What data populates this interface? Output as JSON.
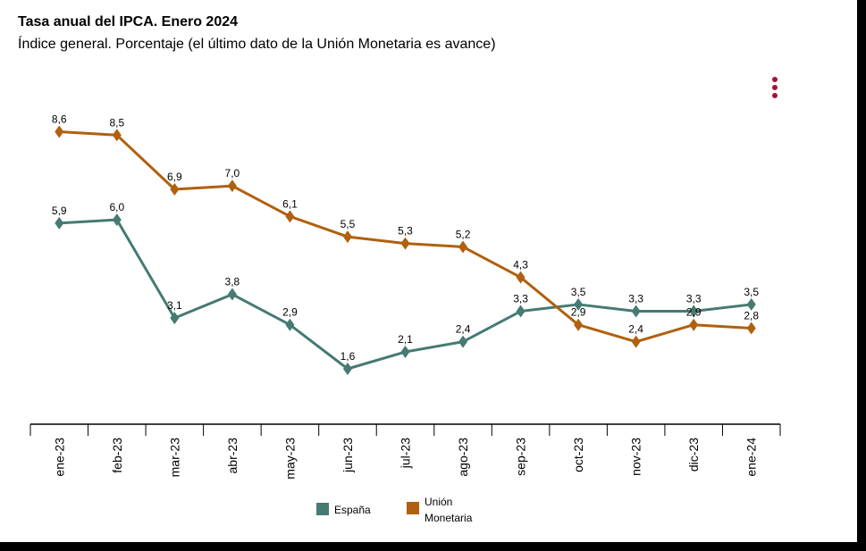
{
  "title": "Tasa anual del IPCA. Enero 2024",
  "subtitle": "Índice general. Porcentaje (el último dato de la Unión Monetaria es avance)",
  "menu_icon": "more-vertical-icon",
  "colors": {
    "espana": "#467a72",
    "um": "#b0600f",
    "menu": "#a3123a",
    "axis": "#000000"
  },
  "legend": {
    "espana_label": "España",
    "um_label": "Unión\nMonetaria"
  },
  "chart_data": {
    "type": "line",
    "categories": [
      "ene-23",
      "feb-23",
      "mar-23",
      "abr-23",
      "may-23",
      "jun-23",
      "jul-23",
      "ago-23",
      "sep-23",
      "oct-23",
      "nov-23",
      "dic-23",
      "ene-24"
    ],
    "series": [
      {
        "name": "España",
        "values": [
          5.9,
          6.0,
          3.1,
          3.8,
          2.9,
          1.6,
          2.1,
          2.4,
          3.3,
          3.5,
          3.3,
          3.3,
          3.5
        ],
        "labels": [
          "5,9",
          "6,0",
          "3,1",
          "3,8",
          "2,9",
          "1,6",
          "2,1",
          "2,4",
          "3,3",
          "3,5",
          "3,3",
          "3,3",
          "3,5"
        ]
      },
      {
        "name": "Unión Monetaria",
        "values": [
          8.6,
          8.5,
          6.9,
          7.0,
          6.1,
          5.5,
          5.3,
          5.2,
          4.3,
          2.9,
          2.4,
          2.9,
          2.8
        ],
        "labels": [
          "8,6",
          "8,5",
          "6,9",
          "7,0",
          "6,1",
          "5,5",
          "5,3",
          "5,2",
          "4,3",
          "2,9",
          "2,4",
          "2,9",
          "2,8"
        ]
      }
    ],
    "marker": "diamond",
    "grid": false,
    "legend_position": "bottom"
  }
}
